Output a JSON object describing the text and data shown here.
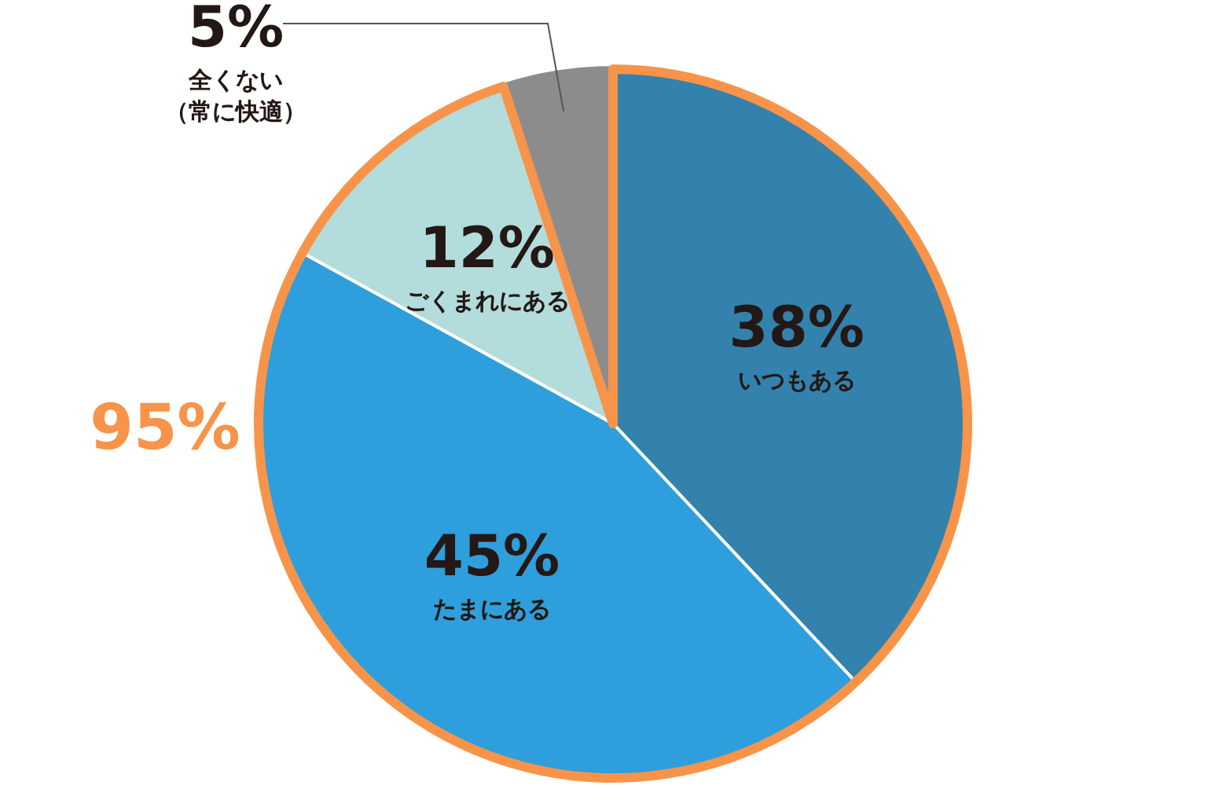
{
  "chart_data": {
    "type": "pie",
    "categories": [
      "いつもある",
      "たまにある",
      "ごくまれにある",
      "全くない（常に快適）"
    ],
    "values": [
      38,
      45,
      12,
      5
    ],
    "colors": [
      "#3382ae",
      "#2e9fdc",
      "#b3dcdc",
      "#8c8c8c"
    ],
    "value_labels": [
      "38%",
      "45%",
      "12%",
      "5%"
    ],
    "annotations": [
      "95%"
    ],
    "legend": false
  }
}
